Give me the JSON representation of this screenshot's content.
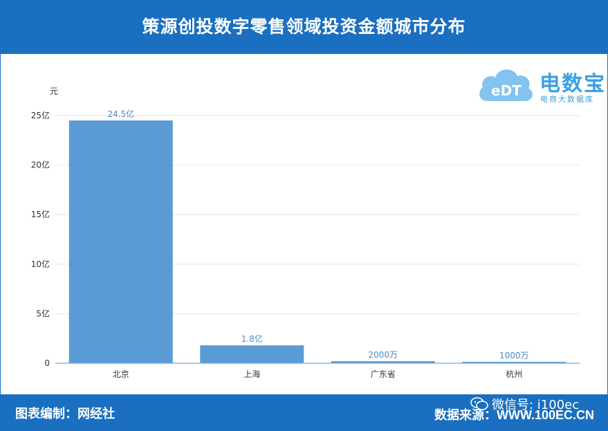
{
  "header": {
    "title": "策源创投数字零售领域投资金额城市分布"
  },
  "logo": {
    "name": "电数宝",
    "subtitle": "电商大数据库",
    "mark_text": "eDT"
  },
  "footer": {
    "left": "图表编制：网经社",
    "right_label": "数据来源：",
    "right_url": "WWW.100EC.CN"
  },
  "watermark": {
    "text": "微信号: i100ec",
    "icon": "wechat-icon"
  },
  "colors": {
    "brand": "#1a6fc0",
    "bar": "#5b9bd5",
    "label": "#4a8ac9"
  },
  "chart_data": {
    "type": "bar",
    "unit_label": "元",
    "categories": [
      "北京",
      "上海",
      "广东省",
      "杭州"
    ],
    "values": [
      2450000000,
      180000000,
      20000000,
      10000000
    ],
    "value_labels": [
      "24.5亿",
      "1.8亿",
      "2000万",
      "1000万"
    ],
    "yticks": [
      0,
      500000000,
      1000000000,
      1500000000,
      2000000000,
      2500000000
    ],
    "ytick_labels": [
      "0",
      "5亿",
      "10亿",
      "15亿",
      "20亿",
      "25亿"
    ],
    "ylim": [
      0,
      2500000000
    ],
    "grid": true,
    "legend": "none"
  }
}
